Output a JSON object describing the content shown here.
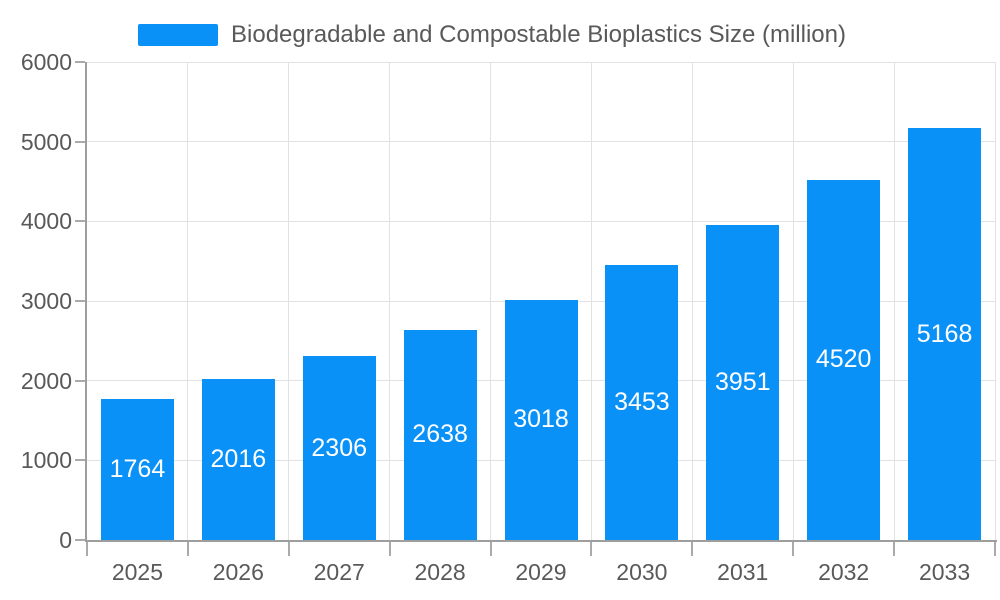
{
  "background": "#ffffff",
  "legend": {
    "label": "Biodegradable and Compostable Bioplastics Size (million)",
    "swatch_color": "#0a91f8"
  },
  "axes": {
    "y_tick_labels": [
      "0",
      "1000",
      "2000",
      "3000",
      "4000",
      "5000",
      "6000"
    ],
    "x_tick_labels": [
      "2025",
      "2026",
      "2027",
      "2028",
      "2029",
      "2030",
      "2031",
      "2032",
      "2033"
    ]
  },
  "colors": {
    "bar": "#0a91f8",
    "grid": "#e2e2e2",
    "axis": "#9e9e9e",
    "tick": "#aaaaaa",
    "text": "#595959",
    "value_label": "#ffffff"
  },
  "chart_data": {
    "type": "bar",
    "title": "Biodegradable and Compostable Bioplastics Size (million)",
    "categories": [
      "2025",
      "2026",
      "2027",
      "2028",
      "2029",
      "2030",
      "2031",
      "2032",
      "2033"
    ],
    "values": [
      1764,
      2016,
      2306,
      2638,
      3018,
      3453,
      3951,
      4520,
      5168
    ],
    "xlabel": "",
    "ylabel": "",
    "ylim": [
      0,
      6000
    ],
    "ytick_step": 1000,
    "grid": true,
    "legend_position": "top",
    "value_labels": "inside-center",
    "bar_slot_fraction": 0.72
  }
}
